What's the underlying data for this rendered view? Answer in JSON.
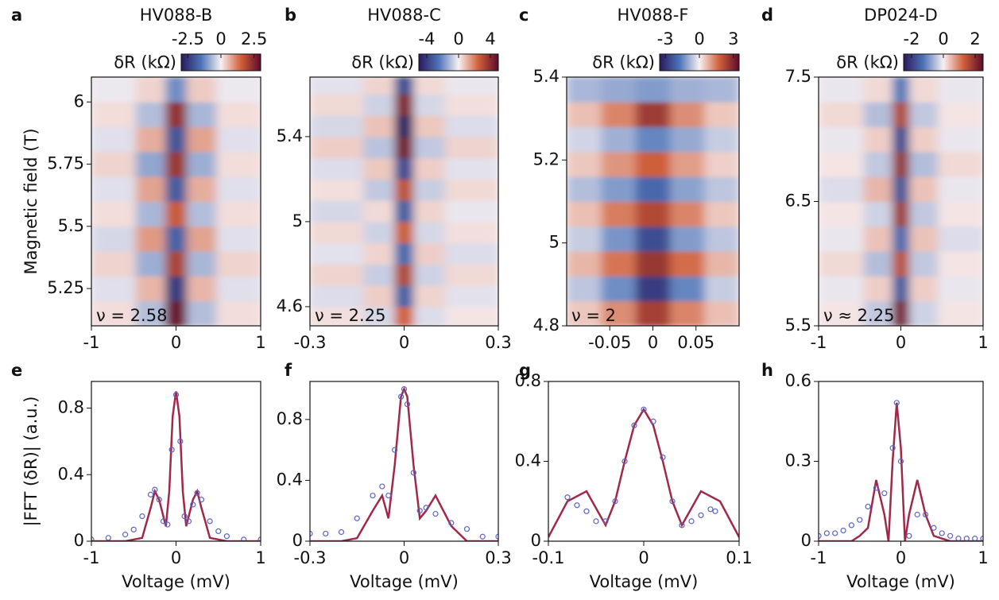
{
  "chart_data": [
    {
      "type": "heatmap",
      "panel_label": "a",
      "title": "HV088-B",
      "ylabel": "Magnetic field (T)",
      "annotation": "ν = 2.58",
      "colorbar_label": "δR (kΩ)",
      "clim": [
        -3,
        3
      ],
      "cticks": [
        -2.5,
        0,
        2.5
      ],
      "colormap": [
        "#2b1a5c",
        "#4d74b8",
        "#f7f0f3",
        "#d0603a",
        "#5b0b2c"
      ],
      "xlim": [
        -1,
        1
      ],
      "xticks": [
        -1,
        0,
        1
      ],
      "ylim": [
        5.1,
        6.1
      ],
      "yticks": [
        5.25,
        5.5,
        5.75,
        6
      ],
      "x": [
        -0.7,
        -0.25,
        0,
        0.25,
        0.7
      ],
      "y": [
        5.15,
        5.25,
        5.35,
        5.45,
        5.55,
        5.65,
        5.75,
        5.85,
        5.95,
        6.05
      ],
      "z": [
        [
          0.2,
          -0.6,
          2.8,
          -0.6,
          0.2
        ],
        [
          -0.2,
          0.6,
          -2.4,
          0.6,
          -0.2
        ],
        [
          0.3,
          -0.8,
          2.0,
          -0.7,
          0.3
        ],
        [
          -0.3,
          0.9,
          -1.8,
          0.8,
          -0.2
        ],
        [
          0.2,
          -0.7,
          1.6,
          -0.6,
          0.2
        ],
        [
          -0.2,
          0.8,
          -1.9,
          0.7,
          -0.2
        ],
        [
          0.3,
          -0.9,
          2.2,
          -0.8,
          0.2
        ],
        [
          -0.2,
          0.7,
          -2.0,
          0.8,
          -0.2
        ],
        [
          0.2,
          -0.6,
          2.3,
          -0.7,
          0.2
        ],
        [
          -0.1,
          0.3,
          -1.2,
          0.4,
          -0.1
        ]
      ]
    },
    {
      "type": "heatmap",
      "panel_label": "b",
      "title": "HV088-C",
      "annotation": "ν = 2.25",
      "colorbar_label": "δR (kΩ)",
      "clim": [
        -5,
        5
      ],
      "cticks": [
        -4,
        0,
        4
      ],
      "colormap": [
        "#2b1a5c",
        "#4d74b8",
        "#f7f0f3",
        "#d0603a",
        "#5b0b2c"
      ],
      "xlim": [
        -0.3,
        0.3
      ],
      "xticks": [
        -0.3,
        0,
        0.3
      ],
      "ylim": [
        4.51,
        5.68
      ],
      "yticks": [
        4.6,
        5,
        5.4
      ],
      "x": [
        -0.2,
        -0.06,
        0,
        0.06,
        0.2
      ],
      "y": [
        4.55,
        4.65,
        4.75,
        4.85,
        4.95,
        5.05,
        5.15,
        5.25,
        5.35,
        5.45,
        5.55,
        5.65
      ],
      "z": [
        [
          0.3,
          -0.5,
          2.5,
          -0.4,
          0.2
        ],
        [
          -0.4,
          0.6,
          -3.0,
          0.5,
          -0.3
        ],
        [
          0.5,
          -0.7,
          3.2,
          -0.6,
          0.4
        ],
        [
          -0.3,
          0.5,
          -2.8,
          0.6,
          -0.4
        ],
        [
          0.4,
          -0.6,
          2.6,
          -0.5,
          0.3
        ],
        [
          -0.5,
          0.4,
          -3.1,
          0.5,
          -0.2
        ],
        [
          0.3,
          -0.8,
          2.9,
          -0.7,
          0.4
        ],
        [
          -0.4,
          0.7,
          -3.6,
          0.6,
          -0.3
        ],
        [
          0.6,
          -0.9,
          4.5,
          -0.8,
          0.5
        ],
        [
          -0.5,
          0.8,
          -4.8,
          0.7,
          -0.4
        ],
        [
          0.4,
          -0.6,
          4.2,
          -0.5,
          0.3
        ],
        [
          -0.3,
          0.5,
          -3.5,
          0.4,
          -0.2
        ]
      ]
    },
    {
      "type": "heatmap",
      "panel_label": "c",
      "title": "HV088-F",
      "annotation": "ν = 2",
      "colorbar_label": "δR (kΩ)",
      "clim": [
        -3.5,
        3.5
      ],
      "cticks": [
        -3,
        0,
        3
      ],
      "colormap": [
        "#2b1a5c",
        "#4d74b8",
        "#f7f0f3",
        "#d0603a",
        "#5b0b2c"
      ],
      "xlim": [
        -0.1,
        0.1
      ],
      "xticks": [
        -0.05,
        0,
        0.05
      ],
      "ylim": [
        4.8,
        5.4
      ],
      "yticks": [
        4.8,
        5,
        5.2,
        5.4
      ],
      "x": [
        -0.08,
        -0.04,
        0,
        0.04,
        0.08
      ],
      "y": [
        4.83,
        4.89,
        4.95,
        5.01,
        5.07,
        5.13,
        5.19,
        5.25,
        5.31,
        5.37
      ],
      "z": [
        [
          0.5,
          1.2,
          2.4,
          1.3,
          0.6
        ],
        [
          -0.6,
          -1.4,
          -2.8,
          -1.5,
          -0.5
        ],
        [
          0.7,
          1.5,
          2.6,
          1.6,
          0.7
        ],
        [
          -0.5,
          -1.3,
          -2.5,
          -1.2,
          -0.6
        ],
        [
          0.6,
          1.4,
          2.2,
          1.3,
          0.5
        ],
        [
          -0.7,
          -1.2,
          -2.0,
          -1.1,
          -0.6
        ],
        [
          0.5,
          1.1,
          1.8,
          1.0,
          0.4
        ],
        [
          -0.4,
          -0.9,
          -1.5,
          -1.0,
          -0.5
        ],
        [
          0.6,
          1.3,
          2.5,
          1.2,
          0.5
        ],
        [
          -0.8,
          -1.0,
          -1.2,
          -0.9,
          -0.8
        ]
      ]
    },
    {
      "type": "heatmap",
      "panel_label": "d",
      "title": "DP024-D",
      "annotation": "ν ≈ 2.25",
      "colorbar_label": "δR (kΩ)",
      "clim": [
        -2.5,
        2.5
      ],
      "cticks": [
        -2,
        0,
        2
      ],
      "colormap": [
        "#2b1a5c",
        "#4d74b8",
        "#f7f0f3",
        "#d0603a",
        "#5b0b2c"
      ],
      "xlim": [
        -1,
        1
      ],
      "xticks": [
        -1,
        0,
        1
      ],
      "ylim": [
        5.5,
        7.5
      ],
      "yticks": [
        5.5,
        6.5,
        7.5
      ],
      "x": [
        -0.7,
        -0.2,
        0,
        0.2,
        0.7
      ],
      "y": [
        5.6,
        5.8,
        6.0,
        6.2,
        6.4,
        6.6,
        6.8,
        7.0,
        7.2,
        7.4
      ],
      "z": [
        [
          0.1,
          -0.4,
          2.2,
          -0.3,
          0.1
        ],
        [
          -0.1,
          0.3,
          -1.6,
          0.3,
          -0.1
        ],
        [
          0.2,
          -0.5,
          1.5,
          -0.4,
          0.1
        ],
        [
          -0.1,
          0.4,
          -1.4,
          0.4,
          -0.2
        ],
        [
          0.1,
          -0.3,
          1.8,
          -0.4,
          0.1
        ],
        [
          -0.2,
          0.5,
          -1.7,
          0.4,
          -0.1
        ],
        [
          0.1,
          -0.4,
          1.9,
          -0.5,
          0.2
        ],
        [
          -0.1,
          0.3,
          -1.8,
          0.3,
          -0.1
        ],
        [
          0.2,
          -0.5,
          1.6,
          -0.4,
          0.1
        ],
        [
          -0.1,
          0.2,
          -1.2,
          0.2,
          -0.1
        ]
      ]
    },
    {
      "type": "fit",
      "panel_label": "e",
      "ylabel": "|FFT (δR)| (a.u.)",
      "xlabel": "Voltage (mV)",
      "xlim": [
        -1,
        1
      ],
      "xticks": [
        -1,
        0,
        1
      ],
      "ylim": [
        0,
        0.96
      ],
      "yticks": [
        0,
        0.4,
        0.8
      ],
      "series": [
        {
          "mark": "line",
          "color": "#a0294a",
          "x": [
            -1,
            -0.6,
            -0.4,
            -0.3,
            -0.25,
            -0.2,
            -0.12,
            -0.08,
            -0.04,
            0,
            0.04,
            0.08,
            0.12,
            0.2,
            0.25,
            0.3,
            0.4,
            0.6,
            1
          ],
          "values": [
            0,
            0,
            0.02,
            0.2,
            0.3,
            0.25,
            0.09,
            0.3,
            0.75,
            0.9,
            0.75,
            0.3,
            0.09,
            0.25,
            0.3,
            0.2,
            0.02,
            0,
            0
          ]
        },
        {
          "mark": "scatter",
          "color": "#5a63c4",
          "x": [
            -1,
            -0.8,
            -0.6,
            -0.5,
            -0.4,
            -0.3,
            -0.25,
            -0.2,
            -0.15,
            -0.1,
            -0.05,
            0,
            0.05,
            0.1,
            0.15,
            0.2,
            0.25,
            0.3,
            0.4,
            0.5,
            0.6,
            0.8,
            1
          ],
          "values": [
            0.01,
            0.02,
            0.04,
            0.07,
            0.15,
            0.28,
            0.31,
            0.25,
            0.12,
            0.1,
            0.55,
            0.88,
            0.6,
            0.15,
            0.12,
            0.22,
            0.29,
            0.25,
            0.12,
            0.06,
            0.03,
            0.01,
            0.01
          ]
        }
      ]
    },
    {
      "type": "fit",
      "panel_label": "f",
      "xlabel": "Voltage (mV)",
      "xlim": [
        -0.3,
        0.3
      ],
      "xticks": [
        -0.3,
        0,
        0.3
      ],
      "ylim": [
        0,
        1.05
      ],
      "yticks": [
        0,
        0.4,
        0.8
      ],
      "series": [
        {
          "mark": "line",
          "color": "#a0294a",
          "x": [
            -0.3,
            -0.2,
            -0.15,
            -0.1,
            -0.07,
            -0.05,
            -0.03,
            -0.01,
            0,
            0.01,
            0.03,
            0.05,
            0.07,
            0.1,
            0.15,
            0.2,
            0.3
          ],
          "values": [
            0,
            0,
            0.02,
            0.2,
            0.3,
            0.15,
            0.5,
            0.95,
            1.0,
            0.95,
            0.5,
            0.15,
            0.2,
            0.3,
            0.1,
            0,
            0
          ]
        },
        {
          "mark": "scatter",
          "color": "#5a63c4",
          "x": [
            -0.3,
            -0.25,
            -0.2,
            -0.15,
            -0.1,
            -0.07,
            -0.05,
            -0.03,
            -0.01,
            0,
            0.01,
            0.03,
            0.05,
            0.07,
            0.1,
            0.15,
            0.2,
            0.25,
            0.3
          ],
          "values": [
            0.05,
            0.05,
            0.06,
            0.15,
            0.3,
            0.36,
            0.3,
            0.6,
            0.95,
            1.0,
            0.9,
            0.45,
            0.2,
            0.22,
            0.18,
            0.12,
            0.08,
            0.03,
            0.03
          ]
        }
      ]
    },
    {
      "type": "fit",
      "panel_label": "g",
      "xlabel": "Voltage (mV)",
      "xlim": [
        -0.1,
        0.1
      ],
      "xticks": [
        -0.1,
        0,
        0.1
      ],
      "ylim": [
        0,
        0.8
      ],
      "yticks": [
        0,
        0.4,
        0.8
      ],
      "series": [
        {
          "mark": "line",
          "color": "#a0294a",
          "x": [
            -0.1,
            -0.08,
            -0.06,
            -0.04,
            -0.03,
            -0.02,
            -0.01,
            0,
            0.01,
            0.02,
            0.03,
            0.04,
            0.06,
            0.08,
            0.1
          ],
          "values": [
            0.02,
            0.2,
            0.25,
            0.08,
            0.2,
            0.4,
            0.58,
            0.66,
            0.58,
            0.4,
            0.2,
            0.08,
            0.25,
            0.2,
            0.02
          ]
        },
        {
          "mark": "scatter",
          "color": "#5a63c4",
          "x": [
            -0.08,
            -0.07,
            -0.06,
            -0.05,
            -0.04,
            -0.03,
            -0.02,
            -0.01,
            0,
            0.01,
            0.02,
            0.03,
            0.04,
            0.05,
            0.06,
            0.07,
            0.075
          ],
          "values": [
            0.22,
            0.18,
            0.15,
            0.1,
            0.1,
            0.2,
            0.4,
            0.58,
            0.66,
            0.6,
            0.42,
            0.2,
            0.08,
            0.1,
            0.13,
            0.16,
            0.15
          ]
        }
      ]
    },
    {
      "type": "fit",
      "panel_label": "h",
      "xlabel": "Voltage (mV)",
      "xlim": [
        -1,
        1
      ],
      "xticks": [
        -1,
        0,
        1
      ],
      "ylim": [
        0,
        0.6
      ],
      "yticks": [
        0,
        0.3,
        0.6
      ],
      "series": [
        {
          "mark": "line",
          "color": "#a0294a",
          "x": [
            -1,
            -0.6,
            -0.5,
            -0.4,
            -0.3,
            -0.2,
            -0.15,
            -0.1,
            -0.05,
            0,
            0.05,
            0.1,
            0.2,
            0.3,
            0.4,
            0.5,
            0.6,
            1
          ],
          "values": [
            0,
            0,
            0.02,
            0.05,
            0.23,
            0.1,
            0,
            0.3,
            0.52,
            0.35,
            0,
            0.1,
            0.23,
            0.1,
            0.02,
            0.01,
            0,
            0
          ]
        },
        {
          "mark": "scatter",
          "color": "#5a63c4",
          "x": [
            -1,
            -0.9,
            -0.8,
            -0.7,
            -0.6,
            -0.5,
            -0.4,
            -0.3,
            -0.2,
            -0.1,
            -0.05,
            0,
            0.1,
            0.2,
            0.3,
            0.4,
            0.5,
            0.6,
            0.7,
            0.8,
            0.9,
            1
          ],
          "values": [
            0.02,
            0.03,
            0.03,
            0.04,
            0.06,
            0.08,
            0.13,
            0.2,
            0.18,
            0.35,
            0.52,
            0.3,
            0.02,
            0.1,
            0.1,
            0.05,
            0.03,
            0.02,
            0.01,
            0.01,
            0.01,
            0.01
          ]
        }
      ]
    }
  ]
}
